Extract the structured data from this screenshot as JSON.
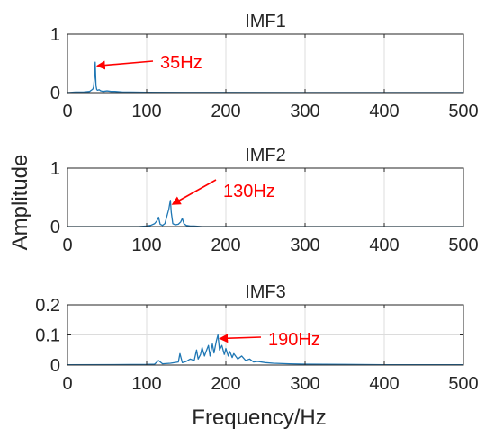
{
  "figure": {
    "ylabel": "Amplitude",
    "xlabel": "Frequency/Hz"
  },
  "colors": {
    "series": "#1f77b4",
    "annotation": "#ff0000",
    "grid": "#dcdcdc",
    "axis": "#262626"
  },
  "chart_data": [
    {
      "type": "line",
      "title": "IMF1",
      "xlim": [
        0,
        500
      ],
      "ylim": [
        0,
        1
      ],
      "xticks": [
        "0",
        "100",
        "200",
        "300",
        "400",
        "500"
      ],
      "yticks": [
        "0",
        "1"
      ],
      "grid": true,
      "series": [
        {
          "x": [
            0,
            10,
            20,
            28,
            30,
            32,
            33,
            34,
            35,
            36,
            37,
            38,
            40,
            42,
            45,
            50,
            55,
            60,
            70,
            80,
            100,
            150,
            200,
            300,
            400,
            500
          ],
          "y": [
            0,
            0.01,
            0.01,
            0.02,
            0.04,
            0.06,
            0.1,
            0.25,
            0.52,
            0.12,
            0.05,
            0.04,
            0.05,
            0.03,
            0.02,
            0.03,
            0.02,
            0.02,
            0.01,
            0.01,
            0.005,
            0.004,
            0.003,
            0.002,
            0.002,
            0.002
          ]
        }
      ],
      "annotation": {
        "text": "35Hz",
        "x": 35,
        "y": 0.52
      }
    },
    {
      "type": "line",
      "title": "IMF2",
      "xlim": [
        0,
        500
      ],
      "ylim": [
        0,
        1
      ],
      "xticks": [
        "0",
        "100",
        "200",
        "300",
        "400",
        "500"
      ],
      "yticks": [
        "0",
        "1"
      ],
      "grid": true,
      "series": [
        {
          "x": [
            0,
            90,
            100,
            105,
            110,
            113,
            115,
            117,
            120,
            123,
            126,
            128,
            129,
            130,
            131,
            133,
            136,
            140,
            143,
            145,
            147,
            150,
            155,
            160,
            170,
            200,
            300,
            400,
            500
          ],
          "y": [
            0,
            0,
            0.01,
            0.02,
            0.05,
            0.1,
            0.16,
            0.04,
            0.02,
            0.05,
            0.2,
            0.3,
            0.38,
            0.45,
            0.25,
            0.05,
            0.03,
            0.04,
            0.08,
            0.14,
            0.05,
            0.02,
            0.01,
            0.01,
            0,
            0,
            0,
            0,
            0
          ]
        }
      ],
      "annotation": {
        "text": "130Hz",
        "x": 130,
        "y": 0.45
      }
    },
    {
      "type": "line",
      "title": "IMF3",
      "xlim": [
        0,
        500
      ],
      "ylim": [
        0,
        0.2
      ],
      "xticks": [
        "0",
        "100",
        "200",
        "300",
        "400",
        "500"
      ],
      "yticks": [
        "0",
        "0.1",
        "0.2"
      ],
      "grid": true,
      "series": [
        {
          "x": [
            0,
            100,
            110,
            115,
            120,
            130,
            140,
            142,
            145,
            150,
            155,
            160,
            163,
            165,
            168,
            170,
            173,
            175,
            178,
            180,
            183,
            185,
            188,
            190,
            192,
            195,
            198,
            200,
            203,
            205,
            208,
            210,
            215,
            220,
            225,
            230,
            235,
            240,
            250,
            260,
            280,
            300,
            350,
            400,
            500
          ],
          "y": [
            0.001,
            0.002,
            0.003,
            0.015,
            0.004,
            0.006,
            0.01,
            0.038,
            0.008,
            0.012,
            0.02,
            0.015,
            0.05,
            0.02,
            0.035,
            0.058,
            0.03,
            0.045,
            0.065,
            0.03,
            0.07,
            0.04,
            0.08,
            0.1,
            0.05,
            0.065,
            0.035,
            0.055,
            0.03,
            0.045,
            0.025,
            0.038,
            0.02,
            0.03,
            0.015,
            0.02,
            0.01,
            0.012,
            0.008,
            0.006,
            0.004,
            0.003,
            0.002,
            0.001,
            0.001
          ]
        }
      ],
      "annotation": {
        "text": "190Hz",
        "x": 190,
        "y": 0.1
      }
    }
  ]
}
